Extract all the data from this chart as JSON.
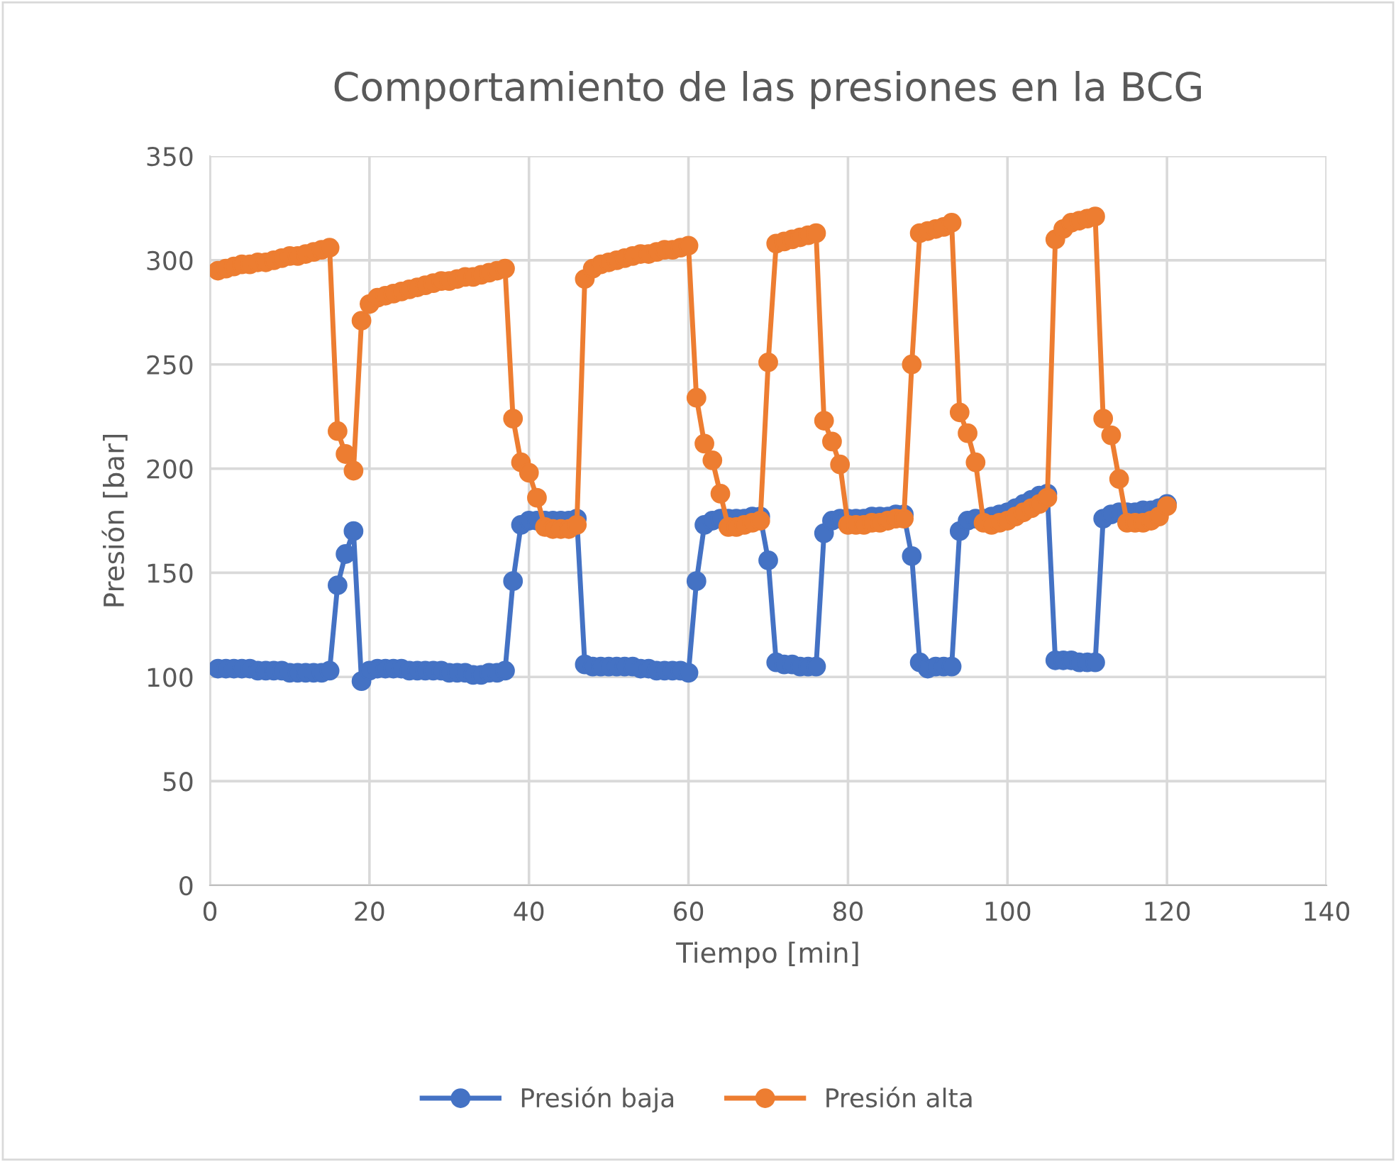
{
  "chart_data": {
    "type": "line",
    "title": "Comportamiento de las presiones en la BCG",
    "xlabel": "Tiempo [min]",
    "ylabel": "Presión [bar]",
    "x": [
      1,
      2,
      3,
      4,
      5,
      6,
      7,
      8,
      9,
      10,
      11,
      12,
      13,
      14,
      15,
      16,
      17,
      18,
      19,
      20,
      21,
      22,
      23,
      24,
      25,
      26,
      27,
      28,
      29,
      30,
      31,
      32,
      33,
      34,
      35,
      36,
      37,
      38,
      39,
      40,
      41,
      42,
      43,
      44,
      45,
      46,
      47,
      48,
      49,
      50,
      51,
      52,
      53,
      54,
      55,
      56,
      57,
      58,
      59,
      60,
      61,
      62,
      63,
      64,
      65,
      66,
      67,
      68,
      69,
      70,
      71,
      72,
      73,
      74,
      75,
      76,
      77,
      78,
      79,
      80,
      81,
      82,
      83,
      84,
      85,
      86,
      87,
      88,
      89,
      90,
      91,
      92,
      93,
      94,
      95,
      96,
      97,
      98,
      99,
      100,
      101,
      102,
      103,
      104,
      105,
      106,
      107,
      108,
      109,
      110,
      111,
      112,
      113,
      114,
      115,
      116,
      117,
      118,
      119,
      120
    ],
    "series": [
      {
        "name": "Presión baja",
        "color": "#4472c4",
        "values": [
          104,
          104,
          104,
          104,
          104,
          103,
          103,
          103,
          103,
          102,
          102,
          102,
          102,
          102,
          103,
          144,
          159,
          170,
          98,
          103,
          104,
          104,
          104,
          104,
          103,
          103,
          103,
          103,
          103,
          102,
          102,
          102,
          101,
          101,
          102,
          102,
          103,
          146,
          173,
          175,
          175,
          175,
          175,
          175,
          175,
          176,
          106,
          105,
          105,
          105,
          105,
          105,
          105,
          104,
          104,
          103,
          103,
          103,
          103,
          102,
          146,
          173,
          175,
          176,
          176,
          176,
          176,
          177,
          177,
          156,
          107,
          106,
          106,
          105,
          105,
          105,
          169,
          175,
          176,
          176,
          176,
          176,
          177,
          177,
          177,
          178,
          178,
          158,
          107,
          104,
          105,
          105,
          105,
          170,
          175,
          176,
          176,
          177,
          178,
          179,
          181,
          183,
          185,
          187,
          188,
          108,
          108,
          108,
          107,
          107,
          107,
          176,
          178,
          179,
          179,
          179,
          180,
          180,
          181,
          183
        ]
      },
      {
        "name": "Presión alta",
        "color": "#ed7d31",
        "values": [
          295,
          296,
          297,
          298,
          298,
          299,
          299,
          300,
          301,
          302,
          302,
          303,
          304,
          305,
          306,
          218,
          207,
          199,
          271,
          279,
          282,
          283,
          284,
          285,
          286,
          287,
          288,
          289,
          290,
          290,
          291,
          292,
          292,
          293,
          294,
          295,
          296,
          224,
          203,
          198,
          186,
          172,
          171,
          171,
          171,
          173,
          291,
          296,
          298,
          299,
          300,
          301,
          302,
          303,
          303,
          304,
          305,
          305,
          306,
          307,
          234,
          212,
          204,
          188,
          172,
          172,
          173,
          174,
          175,
          251,
          308,
          309,
          310,
          311,
          312,
          313,
          223,
          213,
          202,
          173,
          173,
          173,
          174,
          174,
          175,
          176,
          176,
          250,
          313,
          314,
          315,
          316,
          318,
          227,
          217,
          203,
          174,
          173,
          174,
          175,
          177,
          179,
          181,
          183,
          186,
          310,
          315,
          318,
          319,
          320,
          321,
          224,
          216,
          195,
          174,
          174,
          174,
          175,
          177,
          182
        ]
      }
    ],
    "xlim": [
      0,
      140
    ],
    "xticks": [
      0,
      20,
      40,
      60,
      80,
      100,
      120,
      140
    ],
    "ylim": [
      0,
      350
    ],
    "yticks": [
      0,
      50,
      100,
      150,
      200,
      250,
      300,
      350
    ],
    "grid": true,
    "legend": "bottom",
    "marker": "circle",
    "line_style": "solid"
  }
}
